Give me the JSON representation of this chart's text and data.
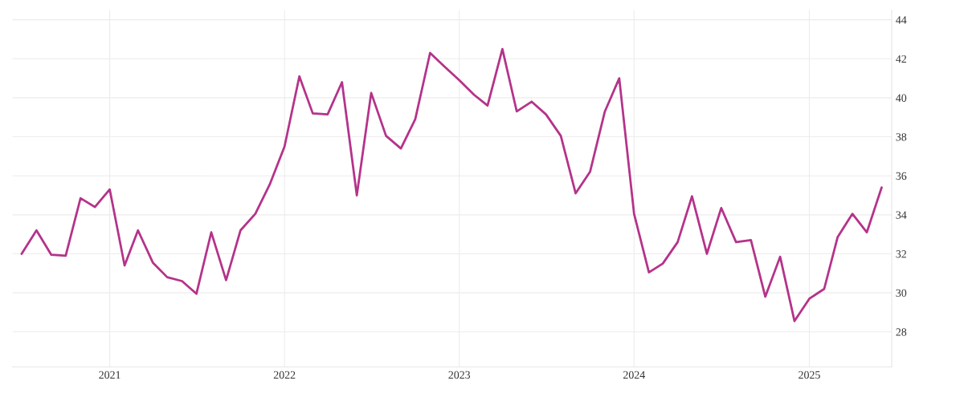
{
  "chart_data": {
    "type": "line",
    "x": [
      "2020-07",
      "2020-08",
      "2020-09",
      "2020-10",
      "2020-11",
      "2020-12",
      "2021-01",
      "2021-02",
      "2021-03",
      "2021-04",
      "2021-05",
      "2021-06",
      "2021-07",
      "2021-08",
      "2021-09",
      "2021-10",
      "2021-11",
      "2021-12",
      "2022-01",
      "2022-02",
      "2022-03",
      "2022-04",
      "2022-05",
      "2022-06",
      "2022-07",
      "2022-08",
      "2022-09",
      "2022-10",
      "2022-11",
      "2022-12",
      "2023-01",
      "2023-02",
      "2023-03",
      "2023-04",
      "2023-05",
      "2023-06",
      "2023-07",
      "2023-08",
      "2023-09",
      "2023-10",
      "2023-11",
      "2023-12",
      "2024-01",
      "2024-02",
      "2024-03",
      "2024-04",
      "2024-05",
      "2024-06",
      "2024-07",
      "2024-08",
      "2024-09",
      "2024-10",
      "2024-11",
      "2024-12",
      "2025-01",
      "2025-02",
      "2025-03",
      "2025-04",
      "2025-05",
      "2025-06"
    ],
    "series": [
      {
        "color": "#b5338a",
        "values": [
          32.0,
          33.2,
          31.95,
          31.9,
          34.85,
          34.4,
          35.3,
          31.4,
          33.2,
          31.55,
          30.8,
          30.6,
          29.95,
          33.1,
          30.65,
          33.2,
          34.05,
          35.55,
          37.5,
          41.1,
          39.2,
          39.15,
          40.8,
          35.0,
          40.25,
          38.05,
          37.4,
          38.9,
          42.3,
          41.6,
          40.9,
          40.15,
          39.6,
          42.5,
          39.3,
          39.8,
          39.15,
          38.05,
          35.1,
          36.2,
          39.3,
          41.0,
          34.05,
          31.05,
          31.5,
          32.6,
          34.95,
          32.0,
          34.35,
          32.6,
          32.7,
          29.8,
          31.85,
          28.55,
          29.7,
          30.2,
          32.85,
          34.05,
          33.1,
          35.4
        ]
      }
    ],
    "xlim": [
      "2020-06-12",
      "2025-06-22"
    ],
    "xticks": [
      {
        "value": "2021-01-01",
        "label": "2021"
      },
      {
        "value": "2022-01-01",
        "label": "2022"
      },
      {
        "value": "2023-01-01",
        "label": "2023"
      },
      {
        "value": "2024-01-01",
        "label": "2024"
      },
      {
        "value": "2025-01-01",
        "label": "2025"
      }
    ],
    "ylim": [
      26.2,
      44.5
    ],
    "yticks": [
      28,
      30,
      32,
      34,
      36,
      38,
      40,
      42,
      44
    ],
    "grid": true,
    "marker": "none",
    "line_style": "solid"
  }
}
